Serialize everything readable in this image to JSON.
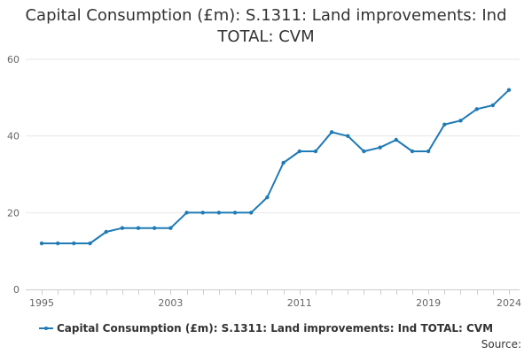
{
  "chart_data": {
    "type": "line",
    "title": "Capital Consumption (£m): S.1311: Land improvements: Ind TOTAL: CVM",
    "xlabel": "",
    "ylabel": "",
    "x": [
      1995,
      1996,
      1997,
      1998,
      1999,
      2000,
      2001,
      2002,
      2003,
      2004,
      2005,
      2006,
      2007,
      2008,
      2009,
      2010,
      2011,
      2012,
      2013,
      2014,
      2015,
      2016,
      2017,
      2018,
      2019,
      2020,
      2021,
      2022,
      2023,
      2024
    ],
    "series": [
      {
        "name": "Capital Consumption (£m): S.1311: Land improvements: Ind TOTAL: CVM",
        "color": "#1f7ab5",
        "values": [
          12,
          12,
          12,
          12,
          15,
          16,
          16,
          16,
          16,
          20,
          20,
          20,
          20,
          20,
          24,
          33,
          36,
          36,
          41,
          40,
          36,
          37,
          39,
          36,
          36,
          43,
          44,
          47,
          48,
          52
        ]
      }
    ],
    "x_tick_labels": [
      "1995",
      "2003",
      "2011",
      "2019",
      "2024"
    ],
    "y_tick_labels": [
      "0",
      "20",
      "40",
      "60"
    ],
    "y_ticks": [
      0,
      20,
      40,
      60
    ],
    "ylim": [
      0,
      60
    ],
    "xlim": [
      1995,
      2024
    ],
    "grid": true,
    "legend_position": "bottom-center",
    "source_label": "Source:"
  },
  "colors": {
    "series": "#1f7ab5",
    "grid": "#e6e6e6",
    "axis": "#cccccc",
    "text": "#333333",
    "tick_text": "#666666"
  }
}
